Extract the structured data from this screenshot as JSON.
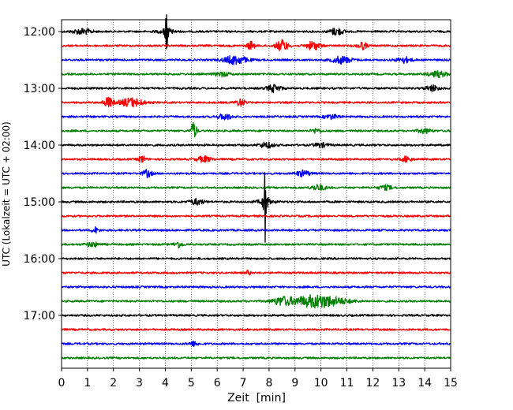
{
  "chart_data": {
    "type": "line",
    "title": "",
    "xlabel": "Zeit  [min]",
    "ylabel": "UTC (Lokalzeit = UTC + 02:00)",
    "xlim": [
      0,
      15
    ],
    "x_ticks": [
      "0",
      "1",
      "2",
      "3",
      "4",
      "5",
      "6",
      "7",
      "8",
      "9",
      "10",
      "11",
      "12",
      "13",
      "14",
      "15"
    ],
    "y_ticks": [
      "12:00",
      "13:00",
      "14:00",
      "15:00",
      "16:00",
      "17:00"
    ],
    "start_time": "12:00",
    "trace_interval_min": 15,
    "grid": "vertical dotted",
    "color_cycle": [
      "#000000",
      "#ff0000",
      "#0000ff",
      "#008000"
    ],
    "series": [
      {
        "start": "12:00",
        "color": "#000000",
        "events": [
          {
            "t": 4.05,
            "amp": 3.0,
            "w": 0.12,
            "spike": true
          },
          {
            "t": 0.8,
            "amp": 0.4,
            "w": 0.4
          },
          {
            "t": 10.6,
            "amp": 0.5,
            "w": 0.3
          }
        ]
      },
      {
        "start": "12:15",
        "color": "#ff0000",
        "events": [
          {
            "t": 7.3,
            "amp": 0.6,
            "w": 0.15
          },
          {
            "t": 8.5,
            "amp": 0.8,
            "w": 0.25
          },
          {
            "t": 9.7,
            "amp": 0.6,
            "w": 0.3
          },
          {
            "t": 11.6,
            "amp": 0.5,
            "w": 0.2
          }
        ]
      },
      {
        "start": "12:30",
        "color": "#0000ff",
        "events": [
          {
            "t": 6.7,
            "amp": 0.6,
            "w": 0.5
          },
          {
            "t": 10.8,
            "amp": 0.5,
            "w": 0.4
          },
          {
            "t": 13.2,
            "amp": 0.4,
            "w": 0.3
          }
        ]
      },
      {
        "start": "12:45",
        "color": "#008000",
        "events": [
          {
            "t": 14.5,
            "amp": 0.4,
            "w": 0.4
          },
          {
            "t": 6.2,
            "amp": 0.3,
            "w": 0.3
          }
        ]
      },
      {
        "start": "13:00",
        "color": "#000000",
        "events": [
          {
            "t": 8.2,
            "amp": 0.5,
            "w": 0.3
          },
          {
            "t": 14.3,
            "amp": 0.4,
            "w": 0.3
          }
        ]
      },
      {
        "start": "13:15",
        "color": "#ff0000",
        "events": [
          {
            "t": 1.8,
            "amp": 0.7,
            "w": 0.2
          },
          {
            "t": 2.7,
            "amp": 0.6,
            "w": 0.5
          },
          {
            "t": 6.9,
            "amp": 0.5,
            "w": 0.2
          }
        ]
      },
      {
        "start": "13:30",
        "color": "#0000ff",
        "events": [
          {
            "t": 6.3,
            "amp": 0.4,
            "w": 0.3
          },
          {
            "t": 10.4,
            "amp": 0.3,
            "w": 0.3
          }
        ]
      },
      {
        "start": "13:45",
        "color": "#008000",
        "events": [
          {
            "t": 5.1,
            "amp": 1.2,
            "w": 0.12
          },
          {
            "t": 9.8,
            "amp": 0.3,
            "w": 0.2
          },
          {
            "t": 14.0,
            "amp": 0.3,
            "w": 0.3
          }
        ]
      },
      {
        "start": "14:00",
        "color": "#000000",
        "events": [
          {
            "t": 7.9,
            "amp": 0.4,
            "w": 0.3
          },
          {
            "t": 10.0,
            "amp": 0.3,
            "w": 0.3
          }
        ]
      },
      {
        "start": "14:15",
        "color": "#ff0000",
        "events": [
          {
            "t": 3.1,
            "amp": 0.5,
            "w": 0.15
          },
          {
            "t": 5.5,
            "amp": 0.4,
            "w": 0.3
          },
          {
            "t": 13.3,
            "amp": 0.4,
            "w": 0.2
          }
        ]
      },
      {
        "start": "14:30",
        "color": "#0000ff",
        "events": [
          {
            "t": 3.3,
            "amp": 0.5,
            "w": 0.2
          },
          {
            "t": 9.3,
            "amp": 0.4,
            "w": 0.3
          }
        ]
      },
      {
        "start": "14:45",
        "color": "#008000",
        "events": [
          {
            "t": 9.9,
            "amp": 0.4,
            "w": 0.3
          },
          {
            "t": 12.5,
            "amp": 0.3,
            "w": 0.3
          }
        ]
      },
      {
        "start": "15:00",
        "color": "#000000",
        "events": [
          {
            "t": 7.85,
            "amp": 3.0,
            "w": 0.15,
            "spike": true
          },
          {
            "t": 5.2,
            "amp": 0.4,
            "w": 0.3
          }
        ]
      },
      {
        "start": "15:15",
        "color": "#ff0000",
        "events": []
      },
      {
        "start": "15:30",
        "color": "#0000ff",
        "events": [
          {
            "t": 1.3,
            "amp": 0.4,
            "w": 0.15
          }
        ]
      },
      {
        "start": "15:45",
        "color": "#008000",
        "events": [
          {
            "t": 4.5,
            "amp": 0.4,
            "w": 0.2
          },
          {
            "t": 1.2,
            "amp": 0.3,
            "w": 0.3
          }
        ]
      },
      {
        "start": "16:00",
        "color": "#000000",
        "events": []
      },
      {
        "start": "16:15",
        "color": "#ff0000",
        "events": [
          {
            "t": 7.2,
            "amp": 0.3,
            "w": 0.1
          }
        ]
      },
      {
        "start": "16:30",
        "color": "#0000ff",
        "events": []
      },
      {
        "start": "16:45",
        "color": "#008000",
        "events": [
          {
            "t": 9.9,
            "amp": 0.9,
            "w": 1.1
          },
          {
            "t": 8.5,
            "amp": 0.5,
            "w": 0.4
          }
        ]
      },
      {
        "start": "17:00",
        "color": "#000000",
        "events": []
      },
      {
        "start": "17:15",
        "color": "#ff0000",
        "events": []
      },
      {
        "start": "17:30",
        "color": "#0000ff",
        "events": [
          {
            "t": 5.1,
            "amp": 0.3,
            "w": 0.2
          }
        ]
      },
      {
        "start": "17:45",
        "color": "#008000",
        "events": []
      }
    ]
  }
}
